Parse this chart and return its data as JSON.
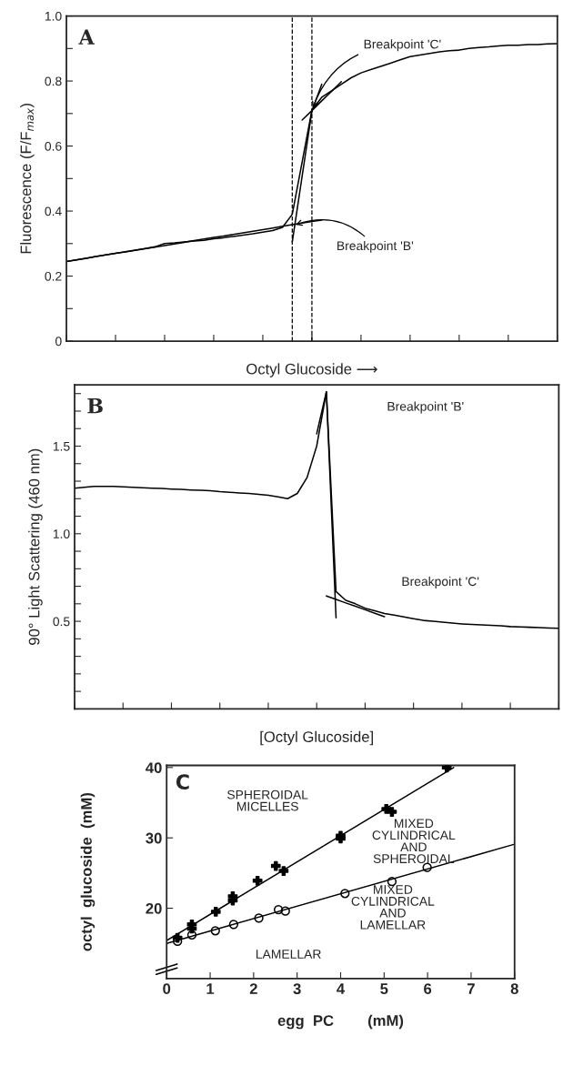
{
  "chart_data": [
    {
      "type": "line",
      "title": "A",
      "ylabel": "Fluorescence (F/F$_{max}$)",
      "xlabel": "Octyl Glucoside ⟶",
      "tick_labels": "y",
      "categories": [
        null,
        null,
        null,
        null,
        null,
        null,
        null,
        null,
        null,
        null,
        null,
        null,
        null,
        null,
        null,
        null,
        null,
        null,
        null,
        null,
        null,
        null,
        null,
        null,
        null,
        null,
        null,
        null,
        null,
        null,
        null,
        null,
        null,
        null,
        null,
        null,
        null,
        null,
        null,
        null,
        null,
        null,
        null,
        null,
        null,
        null,
        null,
        null,
        null,
        null,
        null
      ],
      "ylim": [
        0,
        1.0
      ],
      "yticks": [
        {
          "value": 0,
          "label": "0"
        },
        {
          "value": 0.1,
          "label": null
        },
        {
          "value": 0.2,
          "label": "0.2"
        },
        {
          "value": 0.3,
          "label": null
        },
        {
          "value": 0.4,
          "label": "0.4"
        },
        {
          "value": 0.5,
          "label": null
        },
        {
          "value": 0.6,
          "label": "0.6"
        },
        {
          "value": 0.7,
          "label": null
        },
        {
          "value": 0.8,
          "label": "0.8"
        },
        {
          "value": 0.9,
          "label": null
        },
        {
          "value": 1.0,
          "label": "1.0"
        }
      ],
      "series": [
        {
          "color": "#000000",
          "values": [
            0.245,
            0.25,
            0.255,
            0.26,
            0.265,
            0.27,
            0.275,
            0.28,
            0.285,
            0.29,
            0.3,
            0.302,
            0.305,
            0.308,
            0.31,
            0.315,
            0.318,
            0.322,
            0.326,
            0.33,
            0.335,
            0.34,
            0.35,
            0.39,
            0.55,
            0.71,
            0.75,
            0.77,
            0.79,
            0.81,
            0.825,
            0.835,
            0.845,
            0.855,
            0.865,
            0.875,
            0.88,
            0.885,
            0.89,
            0.893,
            0.895,
            0.9,
            0.903,
            0.905,
            0.908,
            0.91,
            0.91,
            0.912,
            0.912,
            0.914,
            0.915
          ]
        },
        {
          "color": "#000000",
          "values": [
            0.245,
            0.25,
            0.255,
            0.26,
            0.265,
            0.27,
            0.274,
            0.279,
            0.284,
            0.289,
            0.294,
            0.299,
            0.304,
            0.309,
            0.314,
            0.319,
            0.323,
            0.328,
            0.333,
            0.338,
            0.343,
            0.348,
            0.353,
            0.358,
            0.363,
            0.368,
            0.372,
            null,
            null,
            null,
            null,
            null,
            null,
            null,
            null,
            null,
            null,
            null,
            null,
            null,
            null,
            null,
            null,
            null,
            null,
            null,
            null,
            null,
            null,
            null,
            null
          ]
        },
        {
          "color": "#000000",
          "values": [
            null,
            null,
            null,
            null,
            null,
            null,
            null,
            null,
            null,
            null,
            null,
            null,
            null,
            null,
            null,
            null,
            null,
            null,
            null,
            null,
            null,
            null,
            null,
            0.305,
            0.506,
            0.708,
            0.79,
            null,
            null,
            null,
            null,
            null,
            null,
            null,
            null,
            null,
            null,
            null,
            null,
            null,
            null,
            null,
            null,
            null,
            null,
            null,
            null,
            null,
            null,
            null,
            null
          ]
        },
        {
          "color": "#000000",
          "values": [
            null,
            null,
            null,
            null,
            null,
            null,
            null,
            null,
            null,
            null,
            null,
            null,
            null,
            null,
            null,
            null,
            null,
            null,
            null,
            null,
            null,
            null,
            null,
            null,
            0.68,
            0.709,
            0.739,
            0.768,
            0.798,
            null,
            null,
            null,
            null,
            null,
            null,
            null,
            null,
            null,
            null,
            null,
            null,
            null,
            null,
            null,
            null,
            null,
            null,
            null,
            null,
            null,
            null
          ]
        }
      ],
      "annotations": [
        "Breakpoint 'B'",
        "Breakpoint 'C'"
      ]
    },
    {
      "type": "line",
      "title": "B",
      "ylabel": "90° Light Scattering (460 nm)",
      "xlabel": "[Octyl Glucoside]",
      "tick_labels": "y",
      "categories": [
        null,
        null,
        null,
        null,
        null,
        null,
        null,
        null,
        null,
        null,
        null,
        null,
        null,
        null,
        null,
        null,
        null,
        null,
        null,
        null,
        null,
        null,
        null,
        null,
        null,
        null,
        null,
        null,
        null,
        null,
        null,
        null,
        null,
        null,
        null,
        null,
        null,
        null,
        null,
        null,
        null,
        null,
        null,
        null,
        null,
        null,
        null,
        null,
        null,
        null,
        null
      ],
      "ylim": [
        0,
        1.85
      ],
      "yticks": [
        {
          "value": 0.1,
          "label": null
        },
        {
          "value": 0.2,
          "label": null
        },
        {
          "value": 0.3,
          "label": null
        },
        {
          "value": 0.4,
          "label": null
        },
        {
          "value": 0.5,
          "label": "0.5"
        },
        {
          "value": 0.6,
          "label": null
        },
        {
          "value": 0.7,
          "label": null
        },
        {
          "value": 0.8,
          "label": null
        },
        {
          "value": 0.9,
          "label": null
        },
        {
          "value": 1.0,
          "label": "1.0"
        },
        {
          "value": 1.1,
          "label": null
        },
        {
          "value": 1.2,
          "label": null
        },
        {
          "value": 1.3,
          "label": null
        },
        {
          "value": 1.4,
          "label": null
        },
        {
          "value": 1.5,
          "label": "1.5"
        },
        {
          "value": 1.6,
          "label": null
        },
        {
          "value": 1.7,
          "label": null
        },
        {
          "value": 1.8,
          "label": null
        }
      ],
      "series": [
        {
          "color": "#000000",
          "values": [
            1.26,
            1.265,
            1.27,
            1.27,
            1.27,
            1.268,
            1.265,
            1.263,
            1.26,
            1.258,
            1.255,
            1.253,
            1.25,
            1.248,
            1.245,
            1.24,
            1.237,
            1.233,
            1.23,
            1.225,
            1.22,
            1.21,
            1.2,
            1.23,
            1.32,
            1.5,
            1.81,
            0.67,
            0.62,
            0.6,
            0.575,
            0.56,
            0.545,
            0.535,
            0.525,
            0.515,
            0.505,
            0.5,
            0.495,
            0.49,
            0.485,
            0.482,
            0.48,
            0.477,
            0.474,
            0.47,
            0.468,
            0.466,
            0.464,
            0.462,
            0.46
          ]
        },
        {
          "color": "#000000",
          "values": [
            null,
            null,
            null,
            null,
            null,
            null,
            null,
            null,
            null,
            null,
            null,
            null,
            null,
            null,
            null,
            null,
            null,
            null,
            null,
            null,
            null,
            null,
            null,
            null,
            null,
            1.57,
            1.81,
            0.52,
            null,
            null,
            null,
            null,
            null,
            null,
            null,
            null,
            null,
            null,
            null,
            null,
            null,
            null,
            null,
            null,
            null,
            null,
            null,
            null,
            null,
            null,
            null
          ]
        },
        {
          "color": "#000000",
          "values": [
            null,
            null,
            null,
            null,
            null,
            null,
            null,
            null,
            null,
            null,
            null,
            null,
            null,
            null,
            null,
            null,
            null,
            null,
            null,
            null,
            null,
            null,
            null,
            null,
            null,
            null,
            0.645,
            0.625,
            0.605,
            0.586,
            0.566,
            0.546,
            0.526,
            null,
            null,
            null,
            null,
            null,
            null,
            null,
            null,
            null,
            null,
            null,
            null,
            null,
            null,
            null,
            null,
            null,
            null
          ]
        }
      ],
      "annotations": [
        "Breakpoint 'B'",
        "Breakpoint 'C'"
      ]
    },
    {
      "type": "scatter",
      "title": "C",
      "xlabel": "egg  PC        (mM)",
      "ylabel": "octyl  glucoside  (mM)",
      "xlim": [
        0,
        8
      ],
      "ylim": [
        10,
        40.3
      ],
      "xticks": [
        0,
        1,
        2,
        3,
        4,
        5,
        6,
        7,
        8
      ],
      "yticks": [
        20,
        30,
        40
      ],
      "series": [
        {
          "color": "#000000",
          "marker": "cross",
          "x": [
            0.25,
            0.58,
            0.58,
            1.13,
            1.52,
            1.52,
            2.09,
            2.51,
            2.69,
            4.0,
            4.0,
            5.05,
            5.18,
            6.44
          ],
          "values": [
            15.8,
            17.7,
            17.1,
            19.5,
            21.7,
            21.1,
            23.9,
            26.0,
            25.3,
            30.3,
            29.9,
            34.1,
            33.7,
            40.0
          ]
        },
        {
          "color": "#000000",
          "marker": "circle",
          "x": [
            0.25,
            0.58,
            1.12,
            1.54,
            2.12,
            2.57,
            2.73,
            4.1,
            5.18,
            5.99
          ],
          "values": [
            15.3,
            16.2,
            16.8,
            17.7,
            18.6,
            19.8,
            19.6,
            22.1,
            23.8,
            25.8
          ]
        },
        {
          "type": "line",
          "color": "#000000",
          "x": [
            0,
            6.6
          ],
          "values": [
            15.4,
            40.0
          ]
        },
        {
          "type": "line",
          "color": "#000000",
          "x": [
            0,
            8
          ],
          "values": [
            15.0,
            29.1
          ]
        }
      ],
      "annotations": [
        "SPHEROIDAL\nMICELLES",
        "MIXED\nCYLINDRICAL\nAND\nSPHEROIDAL",
        "MIXED\nCYLINDRICAL\nAND\nLAMELLAR",
        "LAMELLAR"
      ]
    }
  ]
}
